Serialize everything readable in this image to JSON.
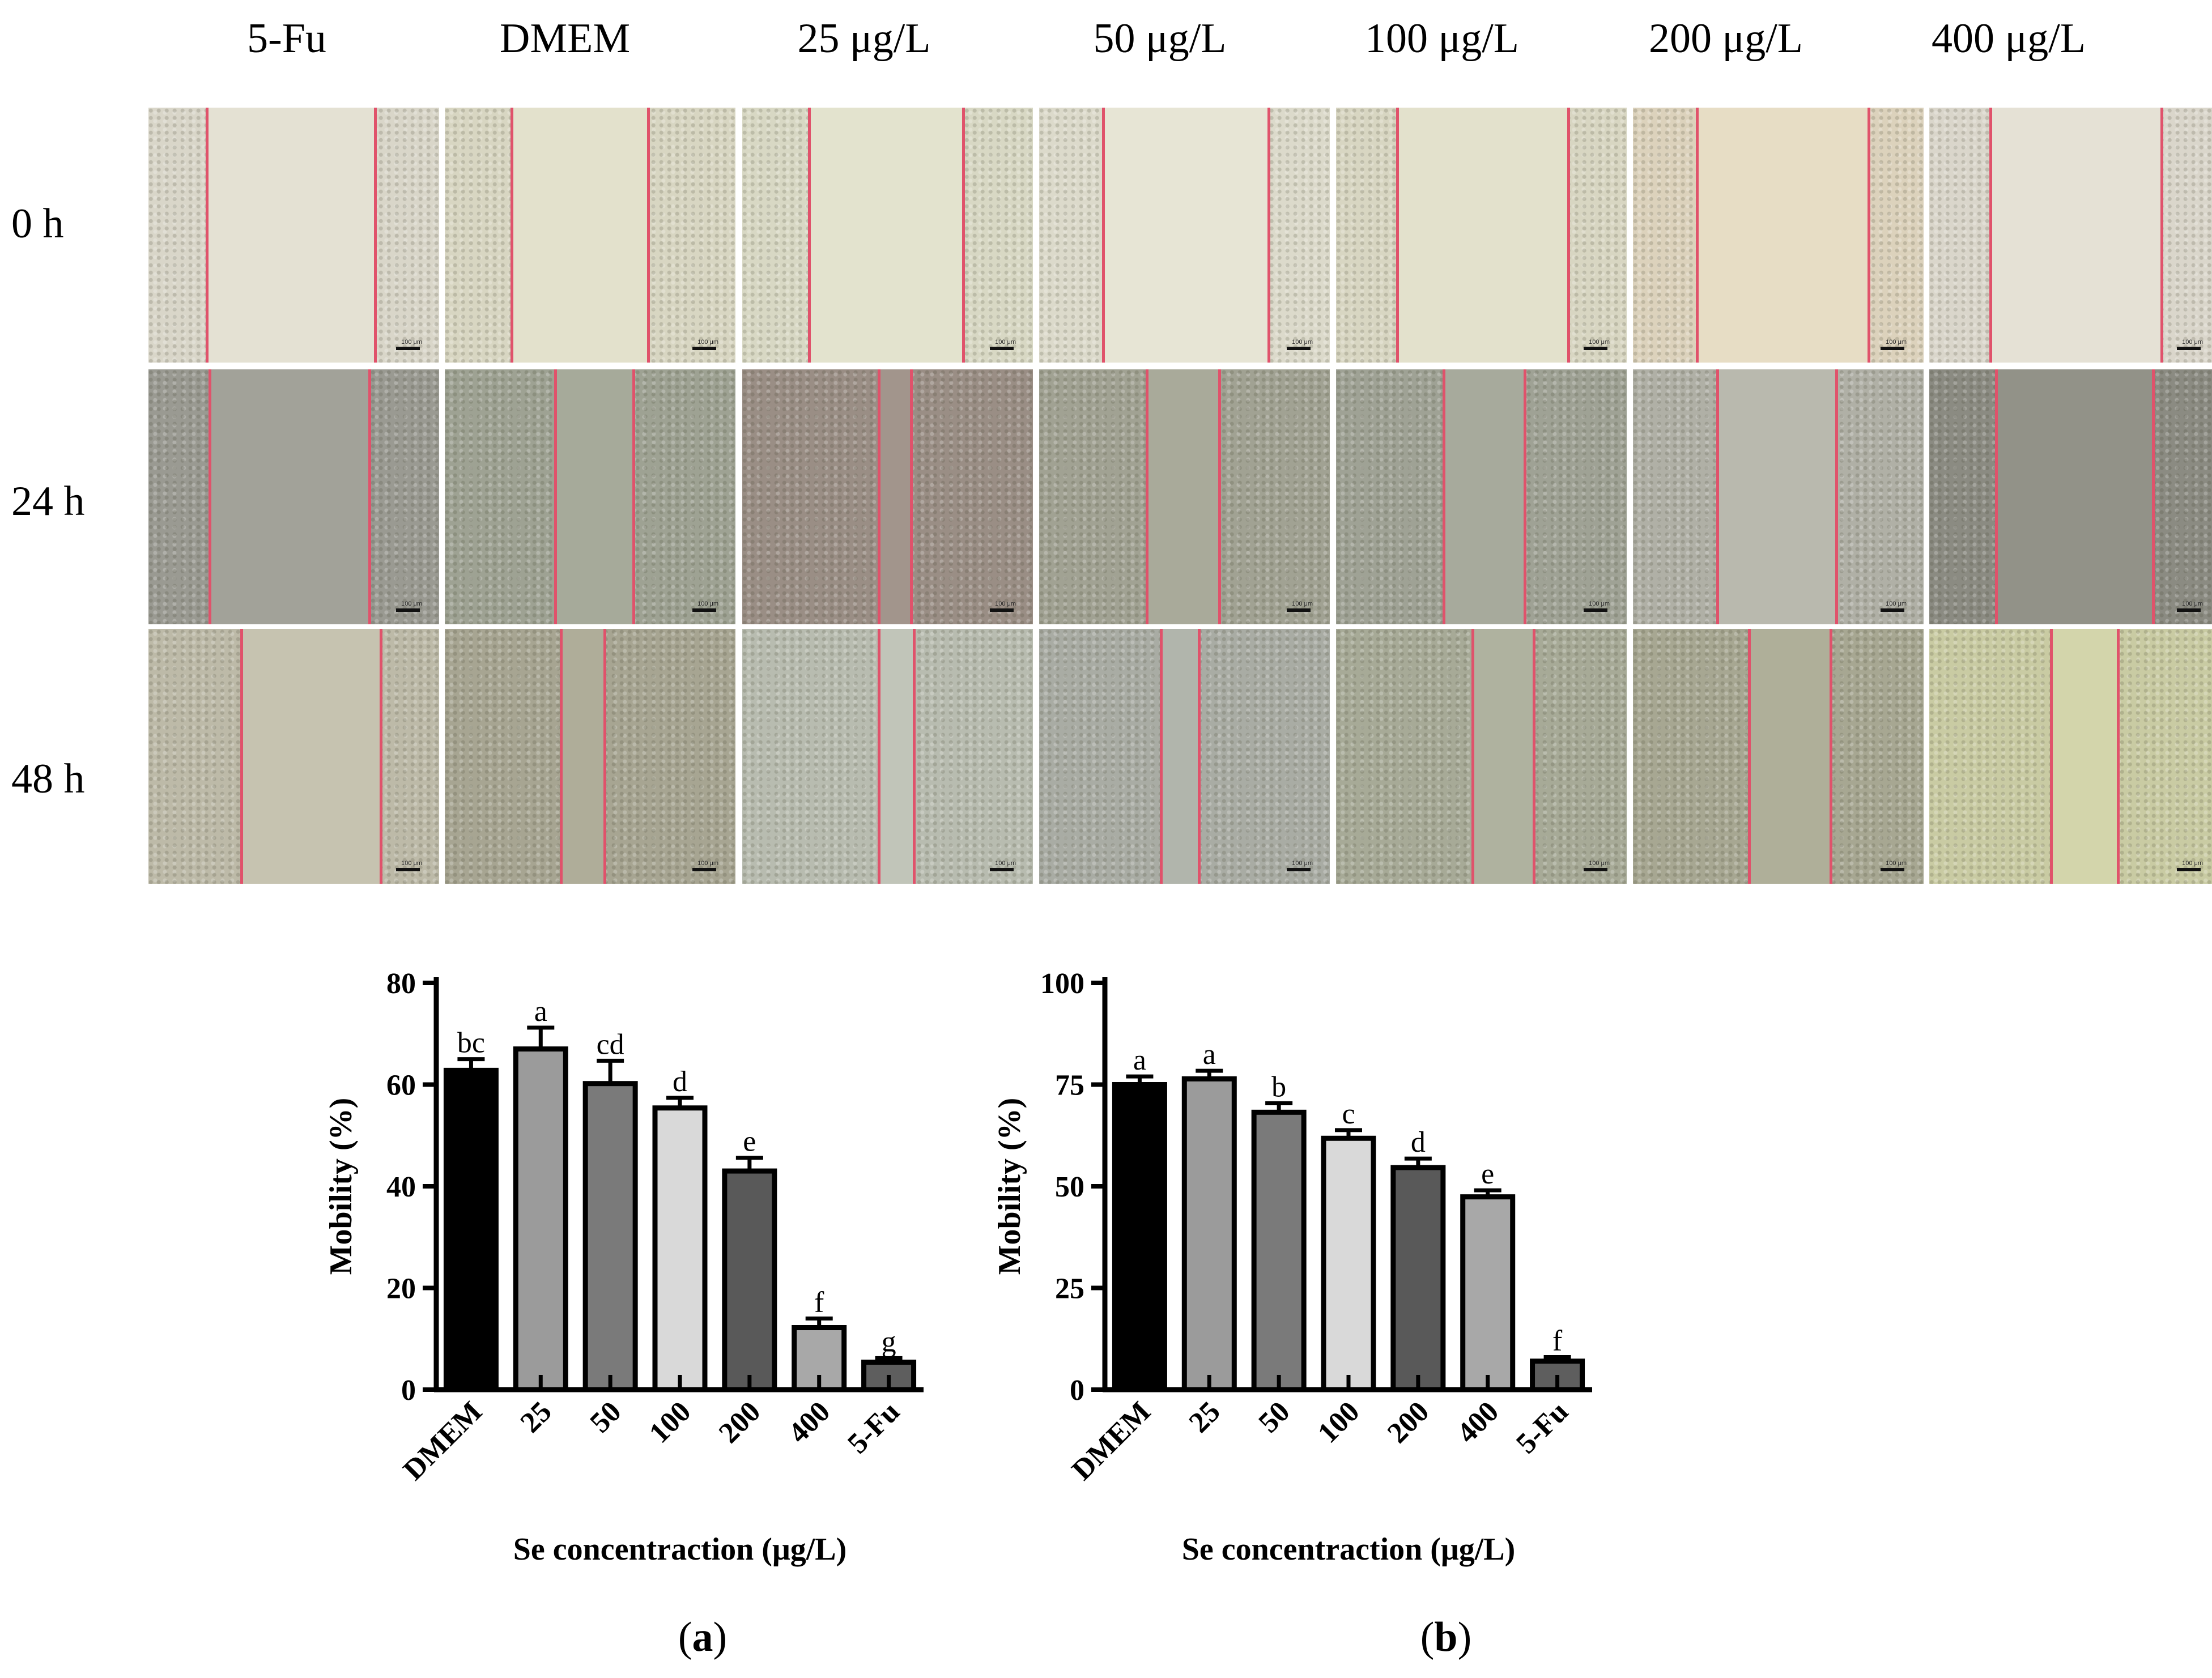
{
  "figure": {
    "column_labels": [
      "5-Fu",
      "DMEM",
      "25 μg/L",
      "50 μg/L",
      "100 μg/L",
      "200 μg/L",
      "400 μg/L"
    ],
    "row_labels": [
      "0 h",
      "24 h",
      "48 h"
    ],
    "scale_bar_label": "100 μm",
    "panel_tags": [
      {
        "open": "(",
        "letter": "a",
        "close": ")"
      },
      {
        "open": "(",
        "letter": "b",
        "close": ")"
      }
    ]
  },
  "chart_data": [
    {
      "type": "bar",
      "ylabel": "Mobility (%)",
      "xlabel": "Se concentraction (μg/L)",
      "ylim": [
        0,
        80
      ],
      "yticks": [
        0,
        20,
        40,
        60,
        80
      ],
      "categories": [
        "DMEM",
        "25",
        "50",
        "100",
        "200",
        "400",
        "5-Fu"
      ],
      "values": [
        62.8,
        67.0,
        60.2,
        55.4,
        43.0,
        12.2,
        5.4
      ],
      "errors": [
        2.2,
        4.2,
        4.5,
        2.0,
        2.6,
        1.8,
        0.8
      ],
      "sig_letters": [
        "bc",
        "a",
        "cd",
        "d",
        "e",
        "f",
        "g"
      ],
      "bar_colors": [
        "#000000",
        "#9b9b9b",
        "#7a7a7a",
        "#d9d9d9",
        "#595959",
        "#a8a8a8",
        "#5e5e5e"
      ],
      "grid": false
    },
    {
      "type": "bar",
      "ylabel": "Mobility (%)",
      "xlabel": "Se concentraction (μg/L)",
      "ylim": [
        0,
        100
      ],
      "yticks": [
        0,
        25,
        50,
        75,
        100
      ],
      "categories": [
        "DMEM",
        "25",
        "50",
        "100",
        "200",
        "400",
        "5-Fu"
      ],
      "values": [
        75.0,
        76.4,
        68.2,
        61.8,
        54.6,
        47.4,
        7.0
      ],
      "errors": [
        2.0,
        2.0,
        2.2,
        2.0,
        2.2,
        1.6,
        1.0
      ],
      "sig_letters": [
        "a",
        "a",
        "b",
        "c",
        "d",
        "e",
        "f"
      ],
      "bar_colors": [
        "#000000",
        "#9b9b9b",
        "#7a7a7a",
        "#d9d9d9",
        "#595959",
        "#a8a8a8",
        "#5e5e5e"
      ],
      "grid": false
    }
  ]
}
